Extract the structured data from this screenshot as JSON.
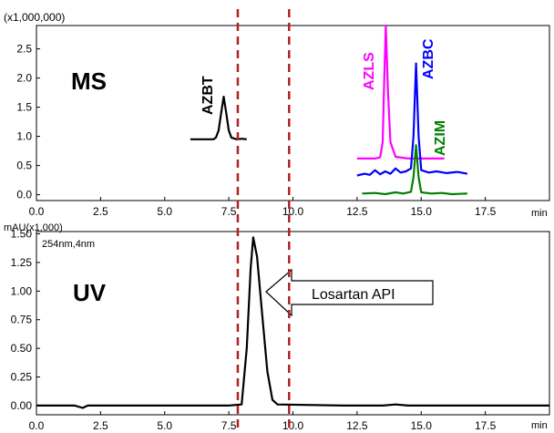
{
  "chart_data": [
    {
      "type": "line",
      "panel_label": "MS",
      "scale_label": "(x1,000,000)",
      "xlabel": "min",
      "xlim": [
        0,
        20
      ],
      "ylim": [
        -0.1,
        2.9
      ],
      "x_ticks": [
        0.0,
        2.5,
        5.0,
        7.5,
        10.0,
        12.5,
        15.0,
        17.5
      ],
      "y_ticks": [
        0.0,
        0.5,
        1.0,
        1.5,
        2.0,
        2.5
      ],
      "series": [
        {
          "name": "AZBT",
          "color": "#000000",
          "points": [
            [
              6.0,
              0.95
            ],
            [
              6.6,
              0.95
            ],
            [
              6.9,
              0.95
            ],
            [
              7.0,
              0.98
            ],
            [
              7.1,
              1.1
            ],
            [
              7.2,
              1.4
            ],
            [
              7.3,
              1.68
            ],
            [
              7.4,
              1.4
            ],
            [
              7.5,
              1.1
            ],
            [
              7.6,
              0.98
            ],
            [
              7.8,
              0.95
            ],
            [
              8.0,
              0.96
            ],
            [
              8.2,
              0.95
            ]
          ]
        },
        {
          "name": "AZLS",
          "color": "#ff00ff",
          "points": [
            [
              12.5,
              0.62
            ],
            [
              13.2,
              0.62
            ],
            [
              13.4,
              0.64
            ],
            [
              13.5,
              0.9
            ],
            [
              13.55,
              1.8
            ],
            [
              13.62,
              2.9
            ],
            [
              13.7,
              1.8
            ],
            [
              13.8,
              0.9
            ],
            [
              14.0,
              0.65
            ],
            [
              14.5,
              0.62
            ],
            [
              15.9,
              0.62
            ]
          ]
        },
        {
          "name": "AZBC",
          "color": "#0000ff",
          "points": [
            [
              12.5,
              0.33
            ],
            [
              12.8,
              0.36
            ],
            [
              13.0,
              0.34
            ],
            [
              13.2,
              0.42
            ],
            [
              13.4,
              0.35
            ],
            [
              13.6,
              0.4
            ],
            [
              13.8,
              0.36
            ],
            [
              14.0,
              0.45
            ],
            [
              14.2,
              0.38
            ],
            [
              14.4,
              0.4
            ],
            [
              14.6,
              0.45
            ],
            [
              14.7,
              1.0
            ],
            [
              14.8,
              2.25
            ],
            [
              14.9,
              1.0
            ],
            [
              15.0,
              0.42
            ],
            [
              15.3,
              0.38
            ],
            [
              15.6,
              0.4
            ],
            [
              16.0,
              0.37
            ],
            [
              16.4,
              0.39
            ],
            [
              16.8,
              0.36
            ]
          ]
        },
        {
          "name": "AZIM",
          "color": "#008000",
          "points": [
            [
              12.7,
              0.02
            ],
            [
              13.2,
              0.03
            ],
            [
              13.6,
              0.01
            ],
            [
              14.0,
              0.04
            ],
            [
              14.3,
              0.02
            ],
            [
              14.6,
              0.05
            ],
            [
              14.7,
              0.3
            ],
            [
              14.8,
              0.85
            ],
            [
              14.9,
              0.3
            ],
            [
              15.0,
              0.04
            ],
            [
              15.4,
              0.02
            ],
            [
              15.8,
              0.03
            ],
            [
              16.2,
              0.01
            ],
            [
              16.8,
              0.02
            ]
          ]
        }
      ]
    },
    {
      "type": "line",
      "panel_label": "UV",
      "scale_label": "mAU(x1,000)",
      "wavelength_label": "254nm,4nm",
      "annotation": "Losartan API",
      "xlabel": "min",
      "xlim": [
        0,
        20
      ],
      "ylim": [
        -0.08,
        1.52
      ],
      "x_ticks": [
        0.0,
        2.5,
        5.0,
        7.5,
        10.0,
        12.5,
        15.0,
        17.5
      ],
      "y_ticks": [
        0.0,
        0.25,
        0.5,
        0.75,
        1.0,
        1.25,
        1.5
      ],
      "series": [
        {
          "color": "#000000",
          "points": [
            [
              0.0,
              0.0
            ],
            [
              1.5,
              0.0
            ],
            [
              1.8,
              -0.02
            ],
            [
              2.0,
              0.0
            ],
            [
              7.5,
              0.0
            ],
            [
              8.0,
              0.01
            ],
            [
              8.2,
              0.5
            ],
            [
              8.35,
              1.2
            ],
            [
              8.45,
              1.47
            ],
            [
              8.6,
              1.3
            ],
            [
              8.8,
              0.8
            ],
            [
              9.0,
              0.3
            ],
            [
              9.2,
              0.05
            ],
            [
              9.4,
              0.01
            ],
            [
              12.0,
              0.0
            ],
            [
              13.5,
              0.0
            ],
            [
              14.0,
              0.01
            ],
            [
              14.5,
              0.0
            ],
            [
              20.0,
              0.0
            ]
          ]
        }
      ]
    }
  ],
  "markers": {
    "dashed_lines_x": [
      7.85,
      9.85
    ],
    "color": "#b22222"
  }
}
